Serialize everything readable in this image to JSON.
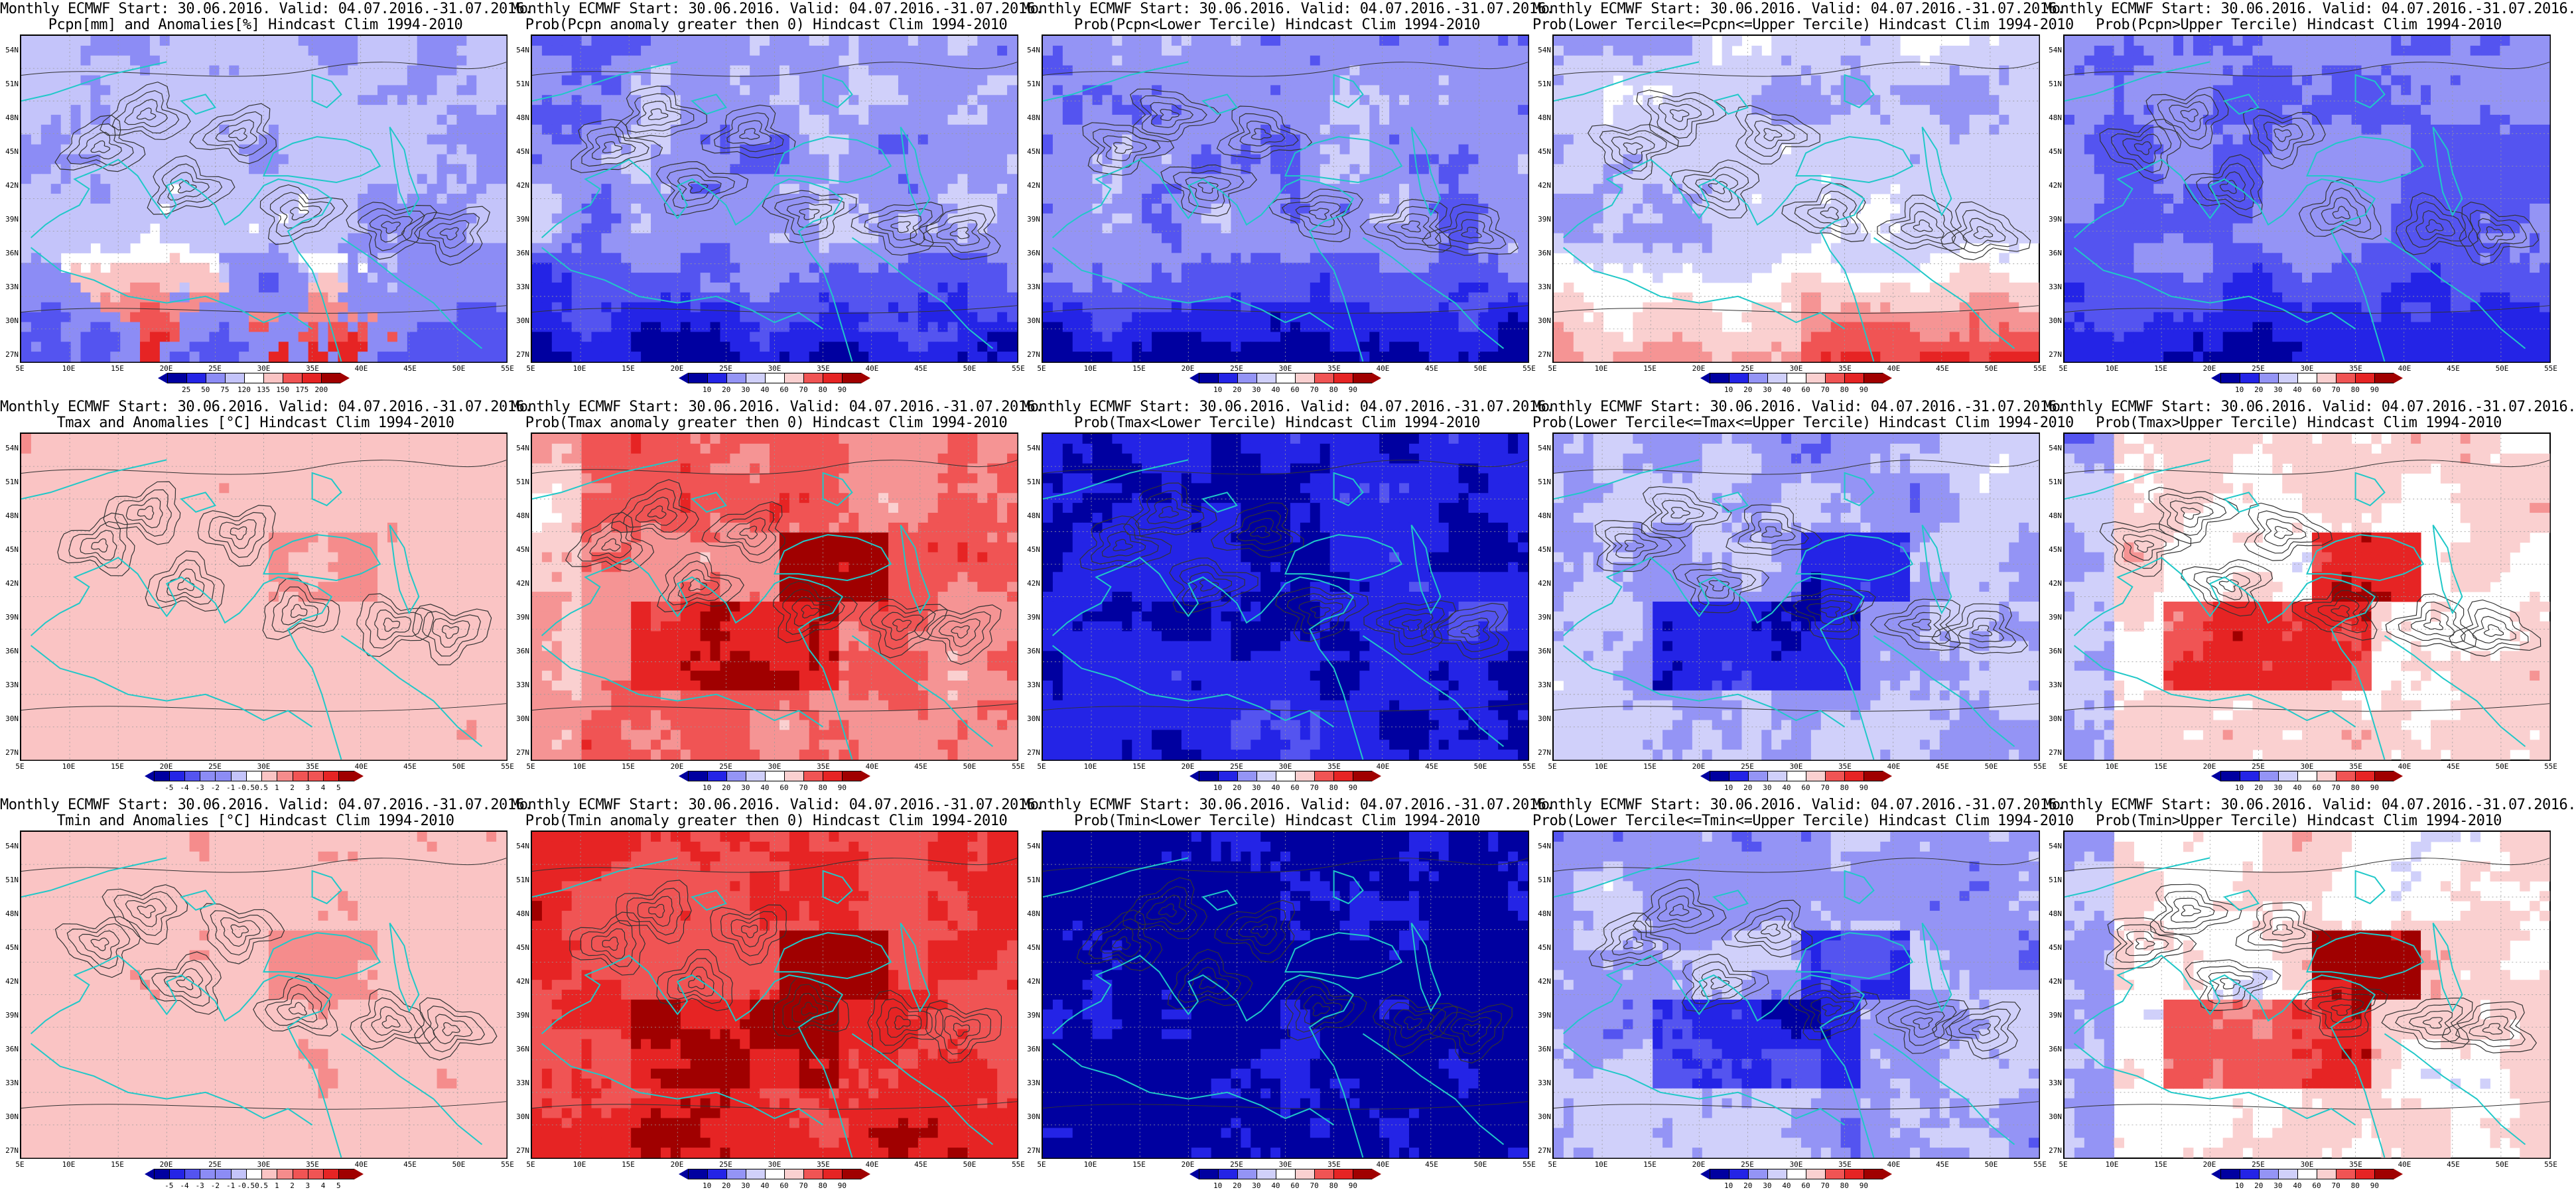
{
  "figure": {
    "lat_labels": [
      "54N",
      "51N",
      "48N",
      "45N",
      "42N",
      "39N",
      "36N",
      "33N",
      "30N",
      "27N"
    ],
    "lon_labels": [
      "5E",
      "10E",
      "15E",
      "20E",
      "25E",
      "30E",
      "35E",
      "40E",
      "45E",
      "50E",
      "55E"
    ],
    "palette": {
      "anomaly": [
        "#0000a0",
        "#2424e6",
        "#5454f0",
        "#8c8cf5",
        "#c4c4fa",
        "#ffffff",
        "#fac4c4",
        "#f58c8c",
        "#f05454",
        "#e62424",
        "#a00000"
      ],
      "probability": [
        "#0000a0",
        "#2424e6",
        "#5454f0",
        "#9494f5",
        "#d0d0fa",
        "#ffffff",
        "#fad0d0",
        "#f59494",
        "#f05454",
        "#e62424",
        "#a00000"
      ],
      "coast": "#20c8c8",
      "contour": "#333333"
    },
    "colorbars": {
      "precip_anomaly": [
        "25",
        "50",
        "75",
        "120",
        "135",
        "150",
        "175",
        "200"
      ],
      "probability": [
        "10",
        "20",
        "30",
        "40",
        "60",
        "70",
        "80",
        "90"
      ],
      "temp_anomaly": [
        "-5",
        "-4",
        "-3",
        "-2",
        "-1",
        "-0.5",
        "0.5",
        "1",
        "2",
        "3",
        "4",
        "5"
      ]
    },
    "panels": [
      {
        "line1": "Monthly ECMWF Start: 30.06.2016. Valid: 04.07.2016.-31.07.2016.",
        "line2": "Pcpn[mm] and Anomalies[%] Hindcast Clim 1994-2010",
        "bar": "precip_anomaly",
        "scheme": "anomaly",
        "pattern": "precip_anom"
      },
      {
        "line1": "Monthly ECMWF Start: 30.06.2016. Valid: 04.07.2016.-31.07.2016.",
        "line2": "Prob(Pcpn anomaly greater then 0) Hindcast Clim 1994-2010",
        "bar": "probability",
        "scheme": "probability",
        "pattern": "precip_prob_pos"
      },
      {
        "line1": "Monthly ECMWF Start: 30.06.2016. Valid: 04.07.2016.-31.07.2016.",
        "line2": "Prob(Pcpn<Lower Tercile) Hindcast Clim 1994-2010",
        "bar": "probability",
        "scheme": "probability",
        "pattern": "precip_prob_lower"
      },
      {
        "line1": "Monthly ECMWF Start: 30.06.2016. Valid: 04.07.2016.-31.07.2016.",
        "line2": "Prob(Lower Tercile<=Pcpn<=Upper Tercile) Hindcast Clim 1994-2010",
        "bar": "probability",
        "scheme": "probability",
        "pattern": "precip_prob_mid"
      },
      {
        "line1": "Monthly ECMWF Start: 30.06.2016. Valid: 04.07.2016.-31.07.2016.",
        "line2": "Prob(Pcpn>Upper Tercile) Hindcast Clim 1994-2010",
        "bar": "probability",
        "scheme": "probability",
        "pattern": "precip_prob_upper"
      },
      {
        "line1": "Monthly ECMWF Start: 30.06.2016. Valid: 04.07.2016.-31.07.2016.",
        "line2": "Tmax and Anomalies [°C] Hindcast Clim 1994-2010",
        "bar": "temp_anomaly",
        "scheme": "anomaly",
        "pattern": "temp_anom"
      },
      {
        "line1": "Monthly ECMWF Start: 30.06.2016. Valid: 04.07.2016.-31.07.2016.",
        "line2": "Prob(Tmax anomaly greater then 0) Hindcast Clim 1994-2010",
        "bar": "probability",
        "scheme": "probability",
        "pattern": "warm_prob"
      },
      {
        "line1": "Monthly ECMWF Start: 30.06.2016. Valid: 04.07.2016.-31.07.2016.",
        "line2": "Prob(Tmax<Lower Tercile) Hindcast Clim 1994-2010",
        "bar": "probability",
        "scheme": "probability",
        "pattern": "cold_prob"
      },
      {
        "line1": "Monthly ECMWF Start: 30.06.2016. Valid: 04.07.2016.-31.07.2016.",
        "line2": "Prob(Lower Tercile<=Tmax<=Upper Tercile) Hindcast Clim 1994-2010",
        "bar": "probability",
        "scheme": "probability",
        "pattern": "mid_prob"
      },
      {
        "line1": "Monthly ECMWF Start: 30.06.2016. Valid: 04.07.2016.-31.07.2016.",
        "line2": "Prob(Tmax>Upper Tercile) Hindcast Clim 1994-2010",
        "bar": "probability",
        "scheme": "probability",
        "pattern": "upper_prob"
      },
      {
        "line1": "Monthly ECMWF Start: 30.06.2016. Valid: 04.07.2016.-31.07.2016.",
        "line2": "Tmin and Anomalies [°C] Hindcast Clim 1994-2010",
        "bar": "temp_anomaly",
        "scheme": "anomaly",
        "pattern": "temp_anom"
      },
      {
        "line1": "Monthly ECMWF Start: 30.06.2016. Valid: 04.07.2016.-31.07.2016.",
        "line2": "Prob(Tmin anomaly greater then 0) Hindcast Clim 1994-2010",
        "bar": "probability",
        "scheme": "probability",
        "pattern": "warm_prob_strong"
      },
      {
        "line1": "Monthly ECMWF Start: 30.06.2016. Valid: 04.07.2016.-31.07.2016.",
        "line2": "Prob(Tmin<Lower Tercile) Hindcast Clim 1994-2010",
        "bar": "probability",
        "scheme": "probability",
        "pattern": "cold_prob_strong"
      },
      {
        "line1": "Monthly ECMWF Start: 30.06.2016. Valid: 04.07.2016.-31.07.2016.",
        "line2": "Prob(Lower Tercile<=Tmin<=Upper Tercile) Hindcast Clim 1994-2010",
        "bar": "probability",
        "scheme": "probability",
        "pattern": "mid_prob"
      },
      {
        "line1": "Monthly ECMWF Start: 30.06.2016. Valid: 04.07.2016.-31.07.2016.",
        "line2": "Prob(Tmin>Upper Tercile) Hindcast Clim 1994-2010",
        "bar": "probability",
        "scheme": "probability",
        "pattern": "upper_prob"
      }
    ]
  }
}
